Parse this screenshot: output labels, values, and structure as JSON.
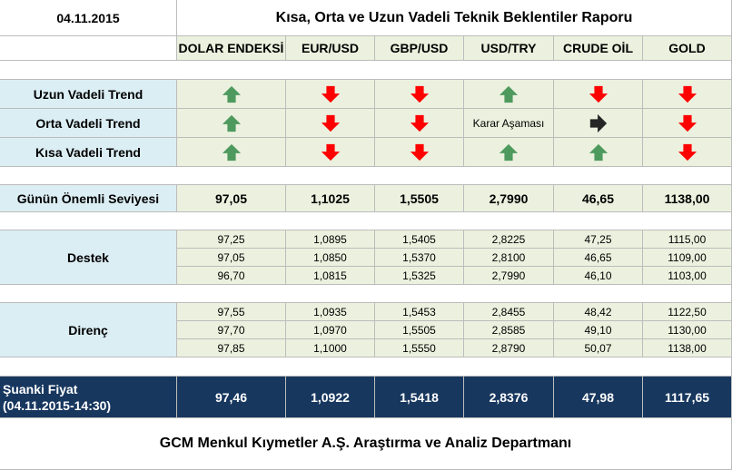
{
  "report": {
    "date": "04.11.2015",
    "title": "Kısa, Orta ve Uzun Vadeli Teknik Beklentiler Raporu",
    "columns": [
      "DOLAR ENDEKSİ",
      "EUR/USD",
      "GBP/USD",
      "USD/TRY",
      "CRUDE OİL",
      "GOLD"
    ],
    "trends": [
      {
        "label": "Uzun Vadeli Trend",
        "cells": [
          {
            "dir": "up"
          },
          {
            "dir": "down"
          },
          {
            "dir": "down"
          },
          {
            "dir": "up"
          },
          {
            "dir": "down"
          },
          {
            "dir": "down"
          }
        ]
      },
      {
        "label": "Orta Vadeli Trend",
        "cells": [
          {
            "dir": "up"
          },
          {
            "dir": "down"
          },
          {
            "dir": "down"
          },
          {
            "dir": "none",
            "text": "Karar Aşaması"
          },
          {
            "dir": "right"
          },
          {
            "dir": "down"
          }
        ]
      },
      {
        "label": "Kısa Vadeli Trend",
        "cells": [
          {
            "dir": "up"
          },
          {
            "dir": "down"
          },
          {
            "dir": "down"
          },
          {
            "dir": "up"
          },
          {
            "dir": "up"
          },
          {
            "dir": "down"
          }
        ]
      }
    ],
    "key_level": {
      "label": "Günün Önemli Seviyesi",
      "values": [
        "97,05",
        "1,1025",
        "1,5505",
        "2,7990",
        "46,65",
        "1138,00"
      ]
    },
    "support": {
      "label": "Destek",
      "rows": [
        [
          "97,25",
          "1,0895",
          "1,5405",
          "2,8225",
          "47,25",
          "1115,00"
        ],
        [
          "97,05",
          "1,0850",
          "1,5370",
          "2,8100",
          "46,65",
          "1109,00"
        ],
        [
          "96,70",
          "1,0815",
          "1,5325",
          "2,7990",
          "46,10",
          "1103,00"
        ]
      ]
    },
    "resistance": {
      "label": "Direnç",
      "rows": [
        [
          "97,55",
          "1,0935",
          "1,5453",
          "2,8455",
          "48,42",
          "1122,50"
        ],
        [
          "97,70",
          "1,0970",
          "1,5505",
          "2,8585",
          "49,10",
          "1130,00"
        ],
        [
          "97,85",
          "1,1000",
          "1,5550",
          "2,8790",
          "50,07",
          "1138,00"
        ]
      ]
    },
    "current": {
      "label_line1": "Şuanki Fiyat",
      "label_line2": "(04.11.2015-14:30)",
      "values": [
        "97,46",
        "1,0922",
        "1,5418",
        "2,8376",
        "47,98",
        "1117,65"
      ]
    },
    "footer": "GCM Menkul Kıymetler A.Ş. Araştırma ve Analiz Departmanı",
    "colors": {
      "up_arrow": "#4e9a5e",
      "down_arrow": "#ff0000",
      "neutral_arrow": "#262626",
      "navy": "#17375e",
      "green_bg": "#ebf1de",
      "blue_bg": "#dbeef4"
    }
  }
}
